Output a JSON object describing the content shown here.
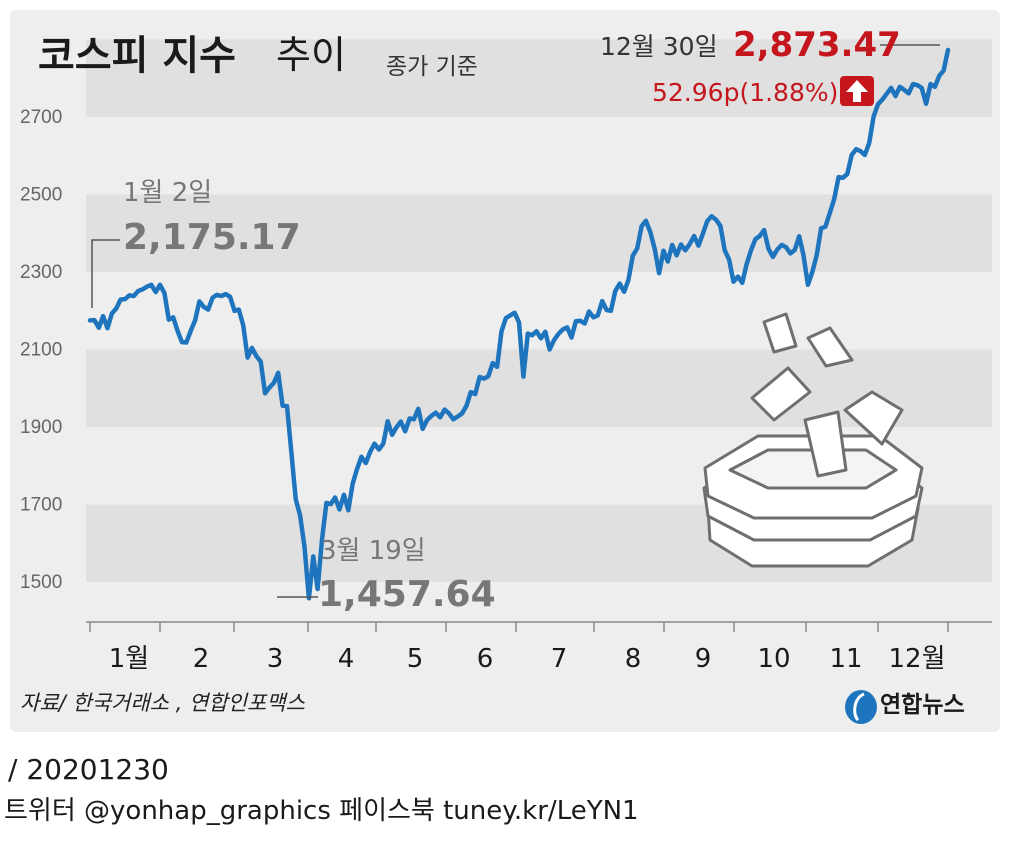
{
  "title": {
    "main": "코스피 지수",
    "sub": "추이",
    "basis": "종가 기준"
  },
  "end_annotation": {
    "date": "12월 30일",
    "value": "2,873.47",
    "change": "52.96p(1.88%)",
    "direction_icon": "up-arrow-icon"
  },
  "start_annotation": {
    "date": "1월 2일",
    "value": "2,175.17"
  },
  "low_annotation": {
    "date": "3월 19일",
    "value": "1,457.64"
  },
  "source": "자료/ 한국거래소 , 연합인포맥스",
  "logo_text": "연합뉴스",
  "footer": {
    "date_line": "/ 20201230",
    "social": "트위터 @yonhap_graphics  페이스북 tuney.kr/LeYN1"
  },
  "colors": {
    "line": "#1f75bd",
    "accent": "#c4161c",
    "band": "#e0e0e0",
    "panel": "#eeeeee",
    "annotation_gray": "#777777"
  },
  "chart_data": {
    "type": "line",
    "title": "코스피 지수 추이",
    "subtitle": "종가 기준",
    "xlabel": "",
    "ylabel": "",
    "ylim": [
      1400,
      2920
    ],
    "yticks": [
      1500,
      1700,
      1900,
      2100,
      2300,
      2500,
      2700
    ],
    "x_tick_labels": [
      "1월",
      "2",
      "3",
      "4",
      "5",
      "6",
      "7",
      "8",
      "9",
      "10",
      "11",
      "12월"
    ],
    "grid": "alternating horizontal bands",
    "series": [
      {
        "values": [
          2175,
          2176,
          2156,
          2186,
          2155,
          2193,
          2206,
          2229,
          2230,
          2240,
          2238,
          2251,
          2255,
          2262,
          2267,
          2248,
          2267,
          2246,
          2177,
          2183,
          2148,
          2119,
          2118,
          2148,
          2175,
          2224,
          2210,
          2203,
          2234,
          2241,
          2238,
          2243,
          2236,
          2200,
          2203,
          2163,
          2079,
          2104,
          2083,
          2069,
          1987,
          2002,
          2014,
          2040,
          1955,
          1954,
          1834,
          1714,
          1672,
          1591,
          1458,
          1566,
          1482,
          1609,
          1704,
          1701,
          1718,
          1687,
          1725,
          1685,
          1754,
          1791,
          1823,
          1807,
          1836,
          1857,
          1842,
          1857,
          1915,
          1880,
          1899,
          1914,
          1889,
          1922,
          1920,
          1947,
          1895,
          1918,
          1929,
          1937,
          1925,
          1945,
          1935,
          1920,
          1927,
          1935,
          1955,
          1990,
          1985,
          2029,
          2025,
          2031,
          2065,
          2055,
          2147,
          2181,
          2188,
          2195,
          2170,
          2030,
          2141,
          2137,
          2147,
          2129,
          2146,
          2100,
          2124,
          2140,
          2152,
          2157,
          2131,
          2173,
          2174,
          2167,
          2198,
          2183,
          2188,
          2225,
          2202,
          2200,
          2251,
          2270,
          2249,
          2279,
          2342,
          2361,
          2418,
          2432,
          2403,
          2360,
          2297,
          2355,
          2327,
          2370,
          2343,
          2371,
          2356,
          2372,
          2393,
          2368,
          2399,
          2431,
          2444,
          2435,
          2419,
          2356,
          2332,
          2275,
          2288,
          2272,
          2320,
          2356,
          2385,
          2393,
          2408,
          2360,
          2339,
          2358,
          2370,
          2364,
          2348,
          2357,
          2392,
          2343,
          2267,
          2300,
          2343,
          2413,
          2417,
          2452,
          2488,
          2545,
          2543,
          2553,
          2602,
          2617,
          2612,
          2602,
          2633,
          2701,
          2733,
          2745,
          2760,
          2775,
          2754,
          2778,
          2770,
          2761,
          2785,
          2782,
          2775,
          2734,
          2785,
          2778,
          2806,
          2820,
          2873
        ]
      }
    ]
  }
}
